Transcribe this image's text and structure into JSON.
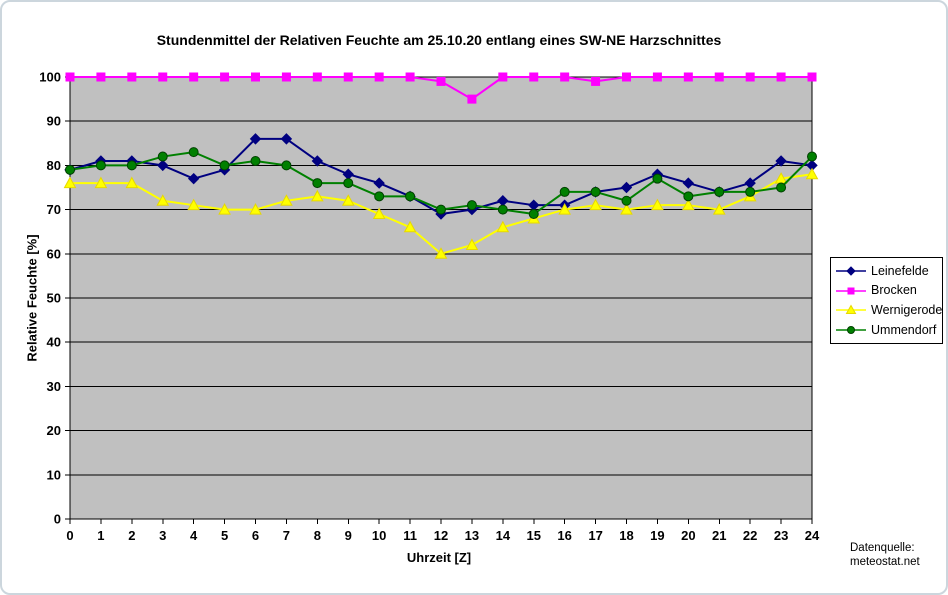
{
  "source_note": {
    "line1": "Datenquelle:",
    "line2": "meteostat.net"
  },
  "chart_data": {
    "type": "line",
    "title": "Stundenmittel der Relativen Feuchte am 25.10.20 entlang eines SW-NE Harzschnittes",
    "xlabel": "Uhrzeit [Z]",
    "ylabel": "Relative Feuchte [%]",
    "xlim": [
      0,
      24
    ],
    "ylim": [
      0,
      100
    ],
    "xticks": [
      0,
      1,
      2,
      3,
      4,
      5,
      6,
      7,
      8,
      9,
      10,
      11,
      12,
      13,
      14,
      15,
      16,
      17,
      18,
      19,
      20,
      21,
      22,
      23,
      24
    ],
    "yticks": [
      0,
      10,
      20,
      30,
      40,
      50,
      60,
      70,
      80,
      90,
      100
    ],
    "grid": "horizontal-black",
    "plot_bg": "#c0c0c0",
    "legend_position": "right",
    "x": [
      0,
      1,
      2,
      3,
      4,
      5,
      6,
      7,
      8,
      9,
      10,
      11,
      12,
      13,
      14,
      15,
      16,
      17,
      18,
      19,
      20,
      21,
      22,
      23,
      24
    ],
    "series": [
      {
        "name": "Leinefelde",
        "color": "#000080",
        "marker": "diamond",
        "edge": "#000080",
        "values": [
          79,
          81,
          81,
          80,
          77,
          79,
          86,
          86,
          81,
          78,
          76,
          73,
          69,
          70,
          72,
          71,
          71,
          74,
          75,
          78,
          76,
          74,
          76,
          81,
          80
        ]
      },
      {
        "name": "Brocken",
        "color": "#ff00ff",
        "marker": "square",
        "edge": "#ff00ff",
        "values": [
          100,
          100,
          100,
          100,
          100,
          100,
          100,
          100,
          100,
          100,
          100,
          100,
          99,
          95,
          100,
          100,
          100,
          99,
          100,
          100,
          100,
          100,
          100,
          100,
          100
        ]
      },
      {
        "name": "Wernigerode",
        "color": "#ffff00",
        "marker": "triangle",
        "edge": "#e6d800",
        "values": [
          76,
          76,
          76,
          72,
          71,
          70,
          70,
          72,
          73,
          72,
          69,
          66,
          60,
          62,
          66,
          68,
          70,
          71,
          70,
          71,
          71,
          70,
          73,
          77,
          78
        ]
      },
      {
        "name": "Ummendorf",
        "color": "#008000",
        "marker": "circle",
        "edge": "#004000",
        "values": [
          79,
          80,
          80,
          82,
          83,
          80,
          81,
          80,
          76,
          76,
          73,
          73,
          70,
          71,
          70,
          69,
          74,
          74,
          72,
          77,
          73,
          74,
          74,
          75,
          82
        ]
      }
    ]
  }
}
